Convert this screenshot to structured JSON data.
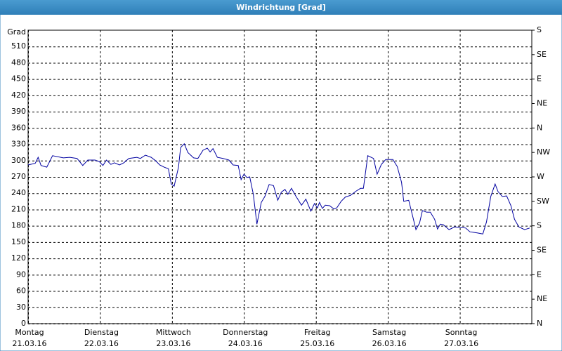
{
  "chart_data": {
    "type": "line",
    "title": "Windrichtung [Grad]",
    "y_label": "Grad",
    "xlim": [
      0,
      7
    ],
    "xticks": [
      {
        "value": 0,
        "label": "Montag",
        "date": "21.03.16"
      },
      {
        "value": 1,
        "label": "Dienstag",
        "date": "22.03.16"
      },
      {
        "value": 2,
        "label": "Mittwoch",
        "date": "23.03.16"
      },
      {
        "value": 3,
        "label": "Donnerstag",
        "date": "24.03.16"
      },
      {
        "value": 4,
        "label": "Freitag",
        "date": "25.03.16"
      },
      {
        "value": 5,
        "label": "Samstag",
        "date": "26.03.16"
      },
      {
        "value": 6,
        "label": "Sonntag",
        "date": "27.03.16"
      }
    ],
    "ylim": [
      0,
      540
    ],
    "yticks": [
      0,
      30,
      60,
      90,
      120,
      150,
      180,
      210,
      240,
      270,
      300,
      330,
      360,
      390,
      420,
      450,
      480,
      510
    ],
    "y2lim": [
      0,
      540
    ],
    "y2ticks": [
      {
        "value": 0,
        "label": "N"
      },
      {
        "value": 45,
        "label": "NE"
      },
      {
        "value": 90,
        "label": "E"
      },
      {
        "value": 135,
        "label": "SE"
      },
      {
        "value": 180,
        "label": "S"
      },
      {
        "value": 225,
        "label": "SW"
      },
      {
        "value": 270,
        "label": "W"
      },
      {
        "value": 315,
        "label": "NW"
      },
      {
        "value": 360,
        "label": "N"
      },
      {
        "value": 405,
        "label": "NE"
      },
      {
        "value": 450,
        "label": "E"
      },
      {
        "value": 495,
        "label": "SE"
      },
      {
        "value": 540,
        "label": "S"
      }
    ],
    "grid": true,
    "series": [
      {
        "color": "#0000a0",
        "x": [
          0,
          0.1,
          0.14,
          0.18,
          0.26,
          0.34,
          0.49,
          0.58,
          0.68,
          0.76,
          0.83,
          0.93,
          0.99,
          1.04,
          1.09,
          1.15,
          1.2,
          1.27,
          1.33,
          1.4,
          1.51,
          1.56,
          1.63,
          1.71,
          1.77,
          1.83,
          1.89,
          1.95,
          1.99,
          2.03,
          2.09,
          2.12,
          2.17,
          2.22,
          2.3,
          2.36,
          2.43,
          2.49,
          2.53,
          2.57,
          2.63,
          2.71,
          2.79,
          2.85,
          2.92,
          2.96,
          3.0,
          3.04,
          3.08,
          3.13,
          3.18,
          3.24,
          3.29,
          3.35,
          3.41,
          3.47,
          3.52,
          3.57,
          3.61,
          3.66,
          3.72,
          3.8,
          3.86,
          3.93,
          3.98,
          4.02,
          4.05,
          4.09,
          4.13,
          4.19,
          4.25,
          4.29,
          4.35,
          4.41,
          4.48,
          4.56,
          4.62,
          4.66,
          4.72,
          4.8,
          4.85,
          4.91,
          4.97,
          5.07,
          5.13,
          5.19,
          5.22,
          5.29,
          5.34,
          5.39,
          5.44,
          5.48,
          5.54,
          5.59,
          5.65,
          5.69,
          5.73,
          5.77,
          5.85,
          5.93,
          6.0,
          6.08,
          6.14,
          6.24,
          6.32,
          6.37,
          6.43,
          6.49,
          6.53,
          6.59,
          6.65,
          6.71,
          6.76,
          6.82,
          6.9,
          6.97
        ],
        "values": [
          292,
          295,
          306,
          291,
          288,
          309,
          305,
          306,
          304,
          291,
          301,
          301,
          298,
          291,
          301,
          293,
          296,
          292,
          296,
          304,
          306,
          304,
          310,
          306,
          300,
          292,
          288,
          285,
          257,
          253,
          288,
          324,
          331,
          315,
          305,
          304,
          319,
          323,
          316,
          322,
          306,
          304,
          301,
          292,
          291,
          265,
          275,
          269,
          270,
          238,
          183,
          223,
          234,
          256,
          254,
          227,
          242,
          247,
          238,
          249,
          235,
          218,
          229,
          207,
          221,
          213,
          223,
          212,
          218,
          217,
          211,
          213,
          225,
          233,
          236,
          244,
          249,
          249,
          309,
          304,
          275,
          293,
          302,
          302,
          289,
          260,
          225,
          227,
          200,
          173,
          185,
          208,
          205,
          205,
          192,
          174,
          183,
          182,
          173,
          178,
          177,
          176,
          169,
          167,
          165,
          187,
          234,
          257,
          243,
          234,
          235,
          217,
          192,
          178,
          173,
          176
        ]
      }
    ]
  }
}
